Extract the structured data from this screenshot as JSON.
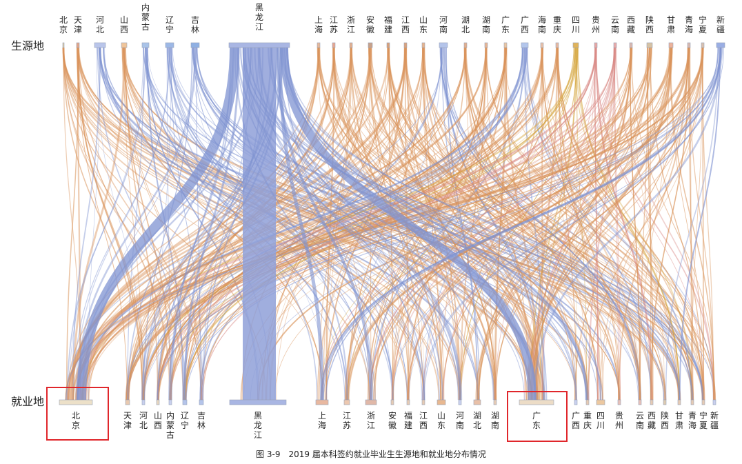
{
  "row_labels": {
    "top": "生源地",
    "bottom": "就业地"
  },
  "caption": "图 3-9　2019 届本科签约就业毕业生生源地和就业地分布情况",
  "colors": {
    "blue": "#7f93d1",
    "node_blue": "#a9b6e3",
    "tan": "#e8c9a8",
    "orange": "#d9935a",
    "gold": "#d4a43a",
    "red": "#d96b6b",
    "highlight": "#e0262b"
  },
  "source_nodes": [
    {
      "id": "北京",
      "text": "北\n京",
      "color": "#d9c7a0"
    },
    {
      "id": "天津",
      "text": "天\n津",
      "color": "#e0a58a"
    },
    {
      "id": "河北",
      "text": "河\n北",
      "color": "#b9c5ea"
    },
    {
      "id": "山西",
      "text": "山\n西",
      "color": "#f0c59a"
    },
    {
      "id": "内蒙古",
      "text": "内\n蒙\n古",
      "color": "#a9c3e8"
    },
    {
      "id": "辽宁",
      "text": "辽\n宁",
      "color": "#9db8e6"
    },
    {
      "id": "吉林",
      "text": "吉\n林",
      "color": "#8fb0e3"
    },
    {
      "id": "黑龙江",
      "text": "黑\n龙\n江",
      "color": "#a9b6e3"
    },
    {
      "id": "上海",
      "text": "上\n海",
      "color": "#e8b89a"
    },
    {
      "id": "江苏",
      "text": "江\n苏",
      "color": "#e6a690"
    },
    {
      "id": "浙江",
      "text": "浙\n江",
      "color": "#e2b090"
    },
    {
      "id": "安徽",
      "text": "安\n徽",
      "color": "#c8a28a"
    },
    {
      "id": "福建",
      "text": "福\n建",
      "color": "#d8a07a"
    },
    {
      "id": "江西",
      "text": "江\n西",
      "color": "#dca37c"
    },
    {
      "id": "山东",
      "text": "山\n东",
      "color": "#e7b48d"
    },
    {
      "id": "河南",
      "text": "河\n南",
      "color": "#b4c4ea"
    },
    {
      "id": "湖北",
      "text": "湖\n北",
      "color": "#e4b08e"
    },
    {
      "id": "湖南",
      "text": "湖\n南",
      "color": "#e6b595"
    },
    {
      "id": "广东",
      "text": "广\n东",
      "color": "#ecc6a2"
    },
    {
      "id": "广西",
      "text": "广\n西",
      "color": "#b3c6ec"
    },
    {
      "id": "海南",
      "text": "海\n南",
      "color": "#e8c0a8"
    },
    {
      "id": "重庆",
      "text": "重\n庆",
      "color": "#e6b8a0"
    },
    {
      "id": "四川",
      "text": "四\n川",
      "color": "#e0b35a"
    },
    {
      "id": "贵州",
      "text": "贵\n州",
      "color": "#e7a7a3"
    },
    {
      "id": "云南",
      "text": "云\n南",
      "color": "#e8aaa8"
    },
    {
      "id": "西藏",
      "text": "西\n藏",
      "color": "#d9b8b0"
    },
    {
      "id": "陕西",
      "text": "陕\n西",
      "color": "#d6c2a4"
    },
    {
      "id": "甘肃",
      "text": "甘\n肃",
      "color": "#ecb29a"
    },
    {
      "id": "青海",
      "text": "青\n海",
      "color": "#d8b8b0"
    },
    {
      "id": "宁夏",
      "text": "宁\n夏",
      "color": "#d8c0b0"
    },
    {
      "id": "新疆",
      "text": "新\n疆",
      "color": "#9aaee4"
    }
  ],
  "target_nodes": [
    {
      "id": "北京",
      "text": "北\n京",
      "color": "#ece0c8",
      "highlight": true
    },
    {
      "id": "天津",
      "text": "天\n津",
      "color": "#e8c9b0"
    },
    {
      "id": "河北",
      "text": "河\n北",
      "color": "#c9d0ee"
    },
    {
      "id": "山西",
      "text": "山\n西",
      "color": "#e6d6c0"
    },
    {
      "id": "内蒙古",
      "text": "内\n蒙\n古",
      "color": "#c9d0ee"
    },
    {
      "id": "辽宁",
      "text": "辽\n宁",
      "color": "#b4c4ea"
    },
    {
      "id": "吉林",
      "text": "吉\n林",
      "color": "#b4c4ea"
    },
    {
      "id": "黑龙江",
      "text": "黑\n龙\n江",
      "color": "#a9b6e3"
    },
    {
      "id": "上海",
      "text": "上\n海",
      "color": "#e8b8a0"
    },
    {
      "id": "江苏",
      "text": "江\n苏",
      "color": "#ecc8b0"
    },
    {
      "id": "浙江",
      "text": "浙\n江",
      "color": "#e0b8a8"
    },
    {
      "id": "安徽",
      "text": "安\n徽",
      "color": "#e6cbb4"
    },
    {
      "id": "福建",
      "text": "福\n建",
      "color": "#e6cbb4"
    },
    {
      "id": "江西",
      "text": "江\n西",
      "color": "#e6cbb4"
    },
    {
      "id": "山东",
      "text": "山\n东",
      "color": "#e8b890"
    },
    {
      "id": "河南",
      "text": "河\n南",
      "color": "#c9d0ee"
    },
    {
      "id": "湖北",
      "text": "湖\n北",
      "color": "#e8c0a8"
    },
    {
      "id": "湖南",
      "text": "湖\n南",
      "color": "#e6cbb4"
    },
    {
      "id": "广东",
      "text": "广\n东",
      "color": "#ecdcc6",
      "highlight": true
    },
    {
      "id": "广西",
      "text": "广\n西",
      "color": "#c9d0ee"
    },
    {
      "id": "重庆",
      "text": "重\n庆",
      "color": "#e6cbb4"
    },
    {
      "id": "四川",
      "text": "四\n川",
      "color": "#ecc8a0"
    },
    {
      "id": "贵州",
      "text": "贵\n州",
      "color": "#e8c0b8"
    },
    {
      "id": "云南",
      "text": "云\n南",
      "color": "#e8c0b8"
    },
    {
      "id": "西藏",
      "text": "西\n藏",
      "color": "#e6cbb4"
    },
    {
      "id": "陕西",
      "text": "陕\n西",
      "color": "#dccab0"
    },
    {
      "id": "甘肃",
      "text": "甘\n肃",
      "color": "#e6cbb4"
    },
    {
      "id": "青海",
      "text": "青\n海",
      "color": "#e6cbb4"
    },
    {
      "id": "宁夏",
      "text": "宁\n夏",
      "color": "#e6cbb4"
    },
    {
      "id": "新疆",
      "text": "新\n疆",
      "color": "#c9d0ee"
    }
  ]
}
